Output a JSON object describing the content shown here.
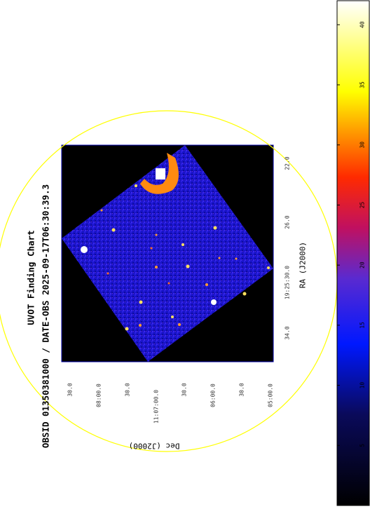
{
  "chart_data": {
    "type": "heatmap",
    "title": "UVOT Finding Chart",
    "subtitle": "OBSID 01350381000 / DATE-OBS 2025-09-17T06:30:39.3",
    "xlabel": "RA (J2000)",
    "ylabel": "Dec (J2000)",
    "ra_ticks": [
      "22.0",
      "26.0",
      "19:25:30.0",
      "34.0"
    ],
    "dec_ticks": [
      "30.0",
      "08:00.0",
      "30.0",
      "11:07:00.0",
      "30.0",
      "06:00.0",
      "30.0",
      "05:00.0"
    ],
    "colorbar": {
      "colormap": "heat",
      "range": [
        0,
        42
      ],
      "ticks": [
        0,
        5,
        10,
        15,
        20,
        25,
        30,
        35,
        40
      ],
      "colors": [
        "#000000",
        "#0000ff",
        "#ff0000",
        "#ffff00",
        "#ffffff"
      ]
    },
    "circle_color": "#ffff00",
    "frame_color": "#0000aa"
  }
}
